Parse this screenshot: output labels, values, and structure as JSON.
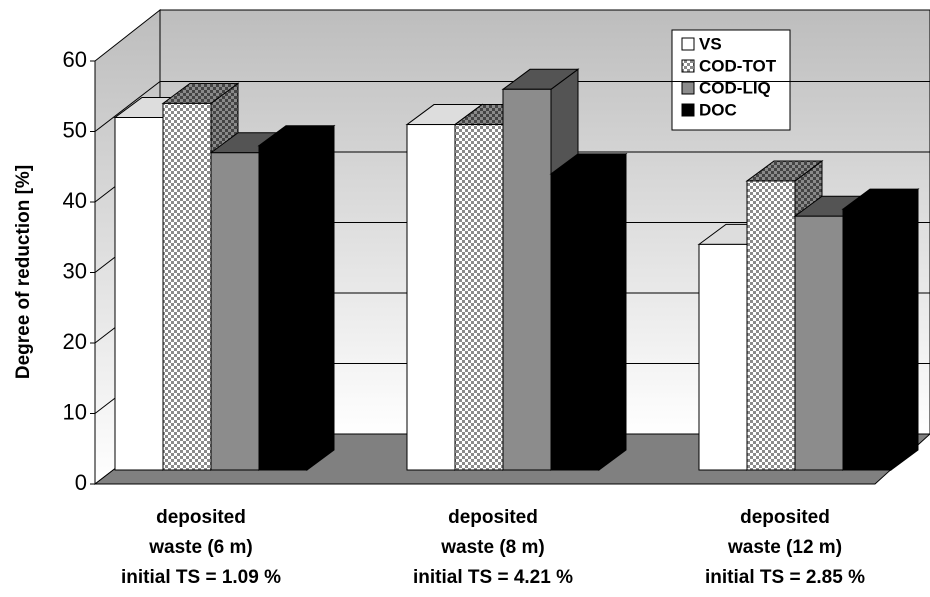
{
  "chart_data": {
    "type": "bar3d",
    "y_label": "Degree of reduction [%]",
    "categories": [
      [
        "deposited",
        "waste (6 m)",
        "initial TS = 1.09 %"
      ],
      [
        "deposited",
        "waste (8 m)",
        "initial TS = 4.21 %"
      ],
      [
        "deposited",
        "waste (12 m)",
        "initial TS = 2.85 %"
      ]
    ],
    "series": [
      {
        "name": "VS",
        "color": "#ffffff",
        "values": [
          50,
          49,
          32
        ]
      },
      {
        "name": "COD-TOT",
        "color": "#c8c8c8",
        "pattern": "checker",
        "values": [
          52,
          49,
          41
        ]
      },
      {
        "name": "COD-LIQ",
        "color": "#8c8c8c",
        "values": [
          45,
          54,
          36
        ]
      },
      {
        "name": "DOC",
        "color": "#000000",
        "values": [
          46,
          42,
          37
        ]
      }
    ],
    "ylim": [
      0,
      60
    ],
    "yticks": [
      0,
      10,
      20,
      30,
      40,
      50,
      60
    ],
    "grid": true,
    "legend": "top-right"
  }
}
